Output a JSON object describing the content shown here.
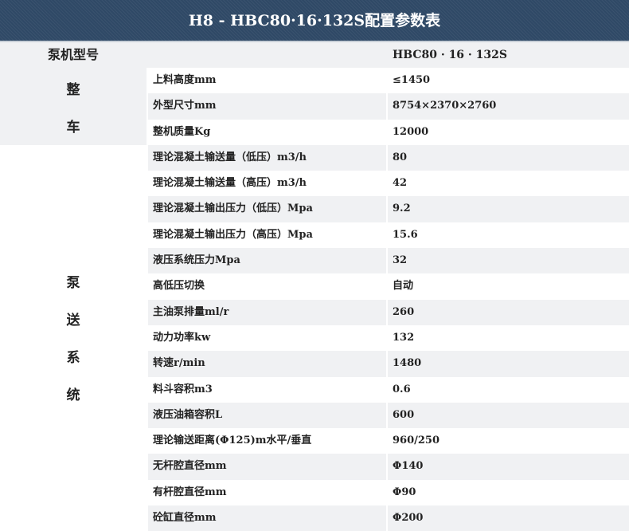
{
  "title": "H8 - HBC80·16·132S配置参数表",
  "model": {
    "label": "泵机型号",
    "value": "HBC80 · 16 · 132S"
  },
  "sections": [
    {
      "chars": [
        "整",
        "车"
      ]
    },
    {
      "chars": [
        "泵",
        "送",
        "系",
        "统"
      ]
    }
  ],
  "rows": [
    {
      "k": "上料高度mm",
      "v": "≤1450"
    },
    {
      "k": "外型尺寸mm",
      "v": "8754×2370×2760"
    },
    {
      "k": "整机质量Kg",
      "v": "12000"
    },
    {
      "k": "理论混凝土输送量（低压）m3/h",
      "v": "80"
    },
    {
      "k": "理论混凝土输送量（高压）m3/h",
      "v": "42"
    },
    {
      "k": "理论混凝土输出压力（低压）Mpa",
      "v": "9.2"
    },
    {
      "k": "理论混凝土输出压力（高压）Mpa",
      "v": "15.6"
    },
    {
      "k": "液压系统压力Mpa",
      "v": "32"
    },
    {
      "k": "高低压切换",
      "v": "自动"
    },
    {
      "k": "主油泵排量ml/r",
      "v": "260"
    },
    {
      "k": "动力功率kw",
      "v": "132"
    },
    {
      "k": "转速r/min",
      "v": "1480"
    },
    {
      "k": "料斗容积m3",
      "v": "0.6"
    },
    {
      "k": "液压油箱容积L",
      "v": "600"
    },
    {
      "k": "理论输送距离(Φ125)m水平/垂直",
      "v": "960/250"
    },
    {
      "k": "无杆腔直径mm",
      "v": "Φ140"
    },
    {
      "k": "有杆腔直径mm",
      "v": "Φ90"
    },
    {
      "k": "砼缸直径mm",
      "v": "Φ200"
    }
  ]
}
